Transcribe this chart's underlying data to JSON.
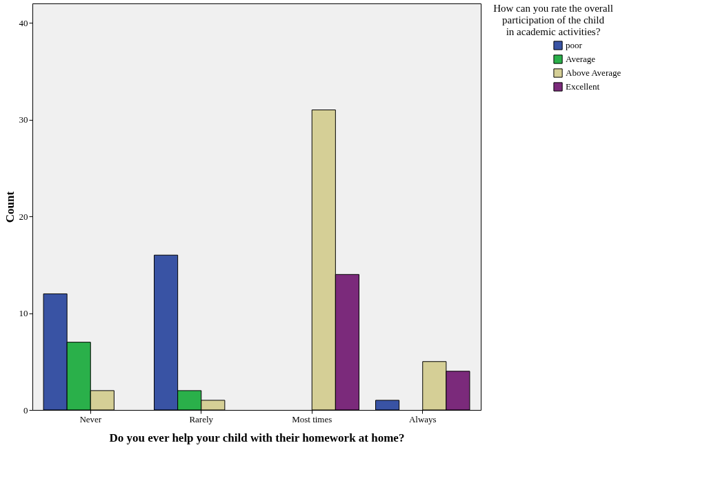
{
  "chart_data": {
    "type": "bar",
    "xlabel": "Do you ever help your child with their homework at home?",
    "ylabel": "Count",
    "legend_title": "How can you rate the overall participation of the child in academic activities?",
    "categories": [
      "Never",
      "Rarely",
      "Most times",
      "Always"
    ],
    "series": [
      {
        "name": "poor",
        "color": "#3953a4",
        "values": [
          12,
          16,
          null,
          1
        ]
      },
      {
        "name": "Average",
        "color": "#2ab04a",
        "values": [
          7,
          2,
          null,
          null
        ]
      },
      {
        "name": "Above Average",
        "color": "#d5cf96",
        "values": [
          2,
          1,
          31,
          5
        ]
      },
      {
        "name": "Excellent",
        "color": "#7b2a7b",
        "values": [
          null,
          null,
          14,
          4
        ]
      }
    ],
    "ylim": [
      0,
      42
    ],
    "yticks": [
      0,
      10,
      20,
      30,
      40
    ],
    "grid": false,
    "legend": "top right"
  }
}
